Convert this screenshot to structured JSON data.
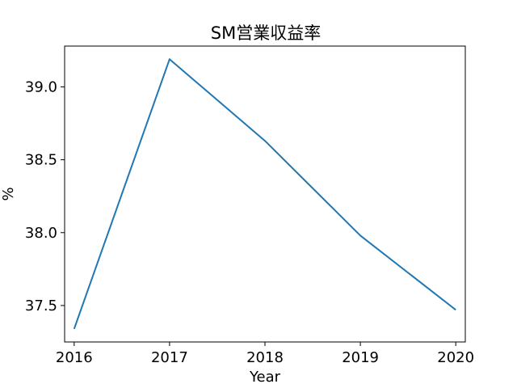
{
  "chart_data": {
    "type": "line",
    "title": "SM営業収益率",
    "xlabel": "Year",
    "ylabel": "%",
    "x": [
      2016,
      2017,
      2018,
      2019,
      2020
    ],
    "series": [
      {
        "values": [
          37.34,
          39.19,
          38.63,
          37.98,
          37.47
        ]
      }
    ],
    "xlim": [
      2015.9,
      2020.1
    ],
    "ylim": [
      37.25,
      39.28
    ],
    "x_ticks": [
      "2016",
      "2017",
      "2018",
      "2019",
      "2020"
    ],
    "y_ticks": [
      "37.5",
      "38.0",
      "38.5",
      "39.0"
    ],
    "grid": false,
    "line_color": "#1f77b4"
  }
}
